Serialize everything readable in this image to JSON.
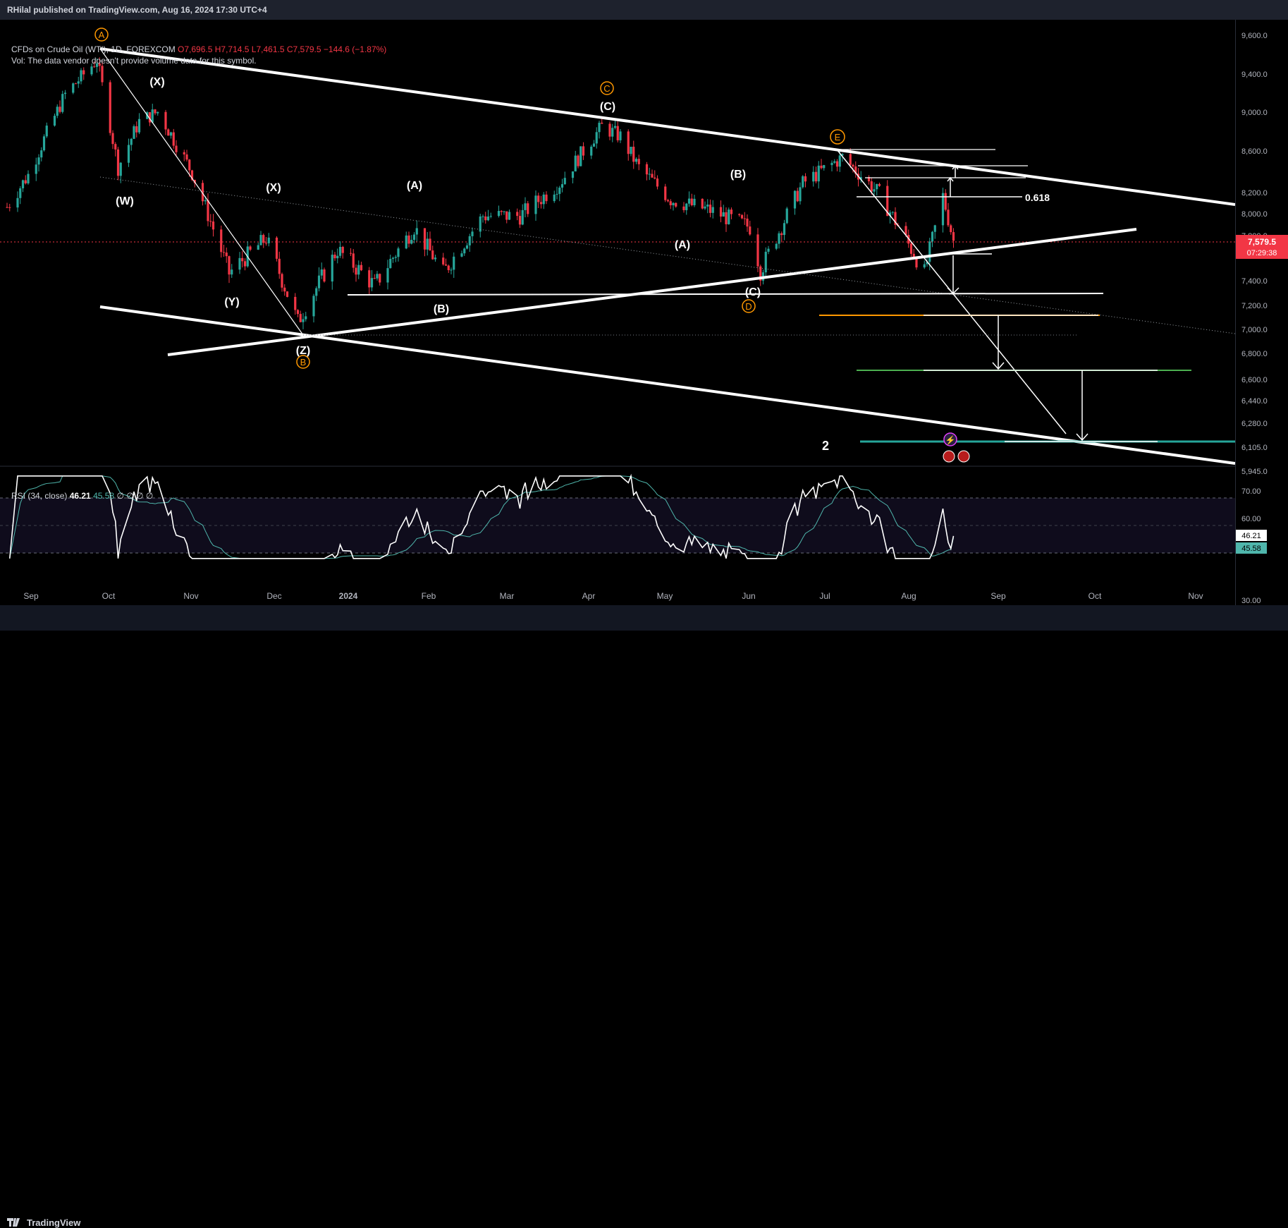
{
  "header": {
    "publish_text": "RHilal published on TradingView.com, Aug 16, 2024 17:30 UTC+4"
  },
  "legend": {
    "symbol": "CFDs on Crude Oil (WTI), 1D, FOREXCOM",
    "open": "O7,696.5",
    "high": "H7,714.5",
    "low": "L7,461.5",
    "close": "C7,579.5",
    "change": "−144.6 (−1.87%)",
    "vol_note": "Vol: The data vendor doesn't provide volume data for this symbol."
  },
  "rsi_legend": {
    "label": "RSI (34, close)",
    "value": "46.21",
    "ma": "45.58",
    "extra": "∅ ∅ ∅ ∅"
  },
  "footer": {
    "logo_text": "TradingView"
  },
  "price_axis": {
    "ticks": [
      "9,600.0",
      "9,400.0",
      "9,000.0",
      "8,600.0",
      "8,200.0",
      "8,000.0",
      "7,800.0",
      "7,400.0",
      "7,200.0",
      "7,000.0",
      "6,800.0",
      "6,600.0",
      "6,440.0",
      "6,280.0",
      "6,105.0",
      "5,945.0"
    ],
    "current_price": "7,579.5",
    "countdown": "07:29:38",
    "rsi_ticks": [
      "70.00",
      "60.00",
      "50.00",
      "40.00",
      "30.00"
    ],
    "rsi_value": "46.21",
    "rsi_ma": "45.58"
  },
  "time_axis": [
    "Sep",
    "Oct",
    "Nov",
    "Dec",
    "2024",
    "Feb",
    "Mar",
    "Apr",
    "May",
    "Jun",
    "Jul",
    "Aug",
    "Sep",
    "Oct",
    "Nov"
  ],
  "annotations": {
    "wave_labels": [
      "(X)",
      "(W)",
      "(X)",
      "(Y)",
      "(Z)",
      "(A)",
      "(B)",
      "(C)",
      "(A)",
      "(B)",
      "(C)",
      "(B)"
    ],
    "circle_labels": [
      "A",
      "B",
      "C",
      "D",
      "E"
    ],
    "fib": "0.618",
    "count": "2"
  },
  "colors": {
    "up": "#26a69a",
    "down": "#f23645",
    "rsi": "#ffffff",
    "rsi_ma": "#4fb6ac",
    "orange": "#ff9800",
    "green": "#4caf50",
    "teal": "#26a69a"
  },
  "chart_data": {
    "type": "candlestick",
    "title": "CFDs on Crude Oil (WTI), 1D, FOREXCOM",
    "ylim": [
      5800,
      9700
    ],
    "close_path": [
      {
        "x": "2023-08-24",
        "y": 7880
      },
      {
        "x": "2023-09-01",
        "y": 8180
      },
      {
        "x": "2023-09-15",
        "y": 8980
      },
      {
        "x": "2023-09-27",
        "y": 9340
      },
      {
        "x": "2023-10-05",
        "y": 8250
      },
      {
        "x": "2023-10-13",
        "y": 8700
      },
      {
        "x": "2023-10-20",
        "y": 8800
      },
      {
        "x": "2023-11-02",
        "y": 8200
      },
      {
        "x": "2023-11-16",
        "y": 7300
      },
      {
        "x": "2023-11-30",
        "y": 7600
      },
      {
        "x": "2023-12-12",
        "y": 6900
      },
      {
        "x": "2023-12-27",
        "y": 7500
      },
      {
        "x": "2024-01-10",
        "y": 7200
      },
      {
        "x": "2024-01-25",
        "y": 7700
      },
      {
        "x": "2024-02-05",
        "y": 7300
      },
      {
        "x": "2024-02-20",
        "y": 7800
      },
      {
        "x": "2024-03-05",
        "y": 7800
      },
      {
        "x": "2024-03-20",
        "y": 8100
      },
      {
        "x": "2024-04-05",
        "y": 8650
      },
      {
        "x": "2024-04-12",
        "y": 8550
      },
      {
        "x": "2024-04-19",
        "y": 8250
      },
      {
        "x": "2024-05-01",
        "y": 7950
      },
      {
        "x": "2024-05-16",
        "y": 7850
      },
      {
        "x": "2024-05-31",
        "y": 7700
      },
      {
        "x": "2024-06-04",
        "y": 7320
      },
      {
        "x": "2024-06-20",
        "y": 8100
      },
      {
        "x": "2024-07-05",
        "y": 8350
      },
      {
        "x": "2024-07-19",
        "y": 8000
      },
      {
        "x": "2024-08-05",
        "y": 7300
      },
      {
        "x": "2024-08-12",
        "y": 7980
      },
      {
        "x": "2024-08-16",
        "y": 7579.5
      }
    ],
    "rsi_series": {
      "name": "RSI (34, close)",
      "last": 46.21,
      "ma_last": 45.58,
      "ylim": [
        30,
        70
      ]
    }
  }
}
